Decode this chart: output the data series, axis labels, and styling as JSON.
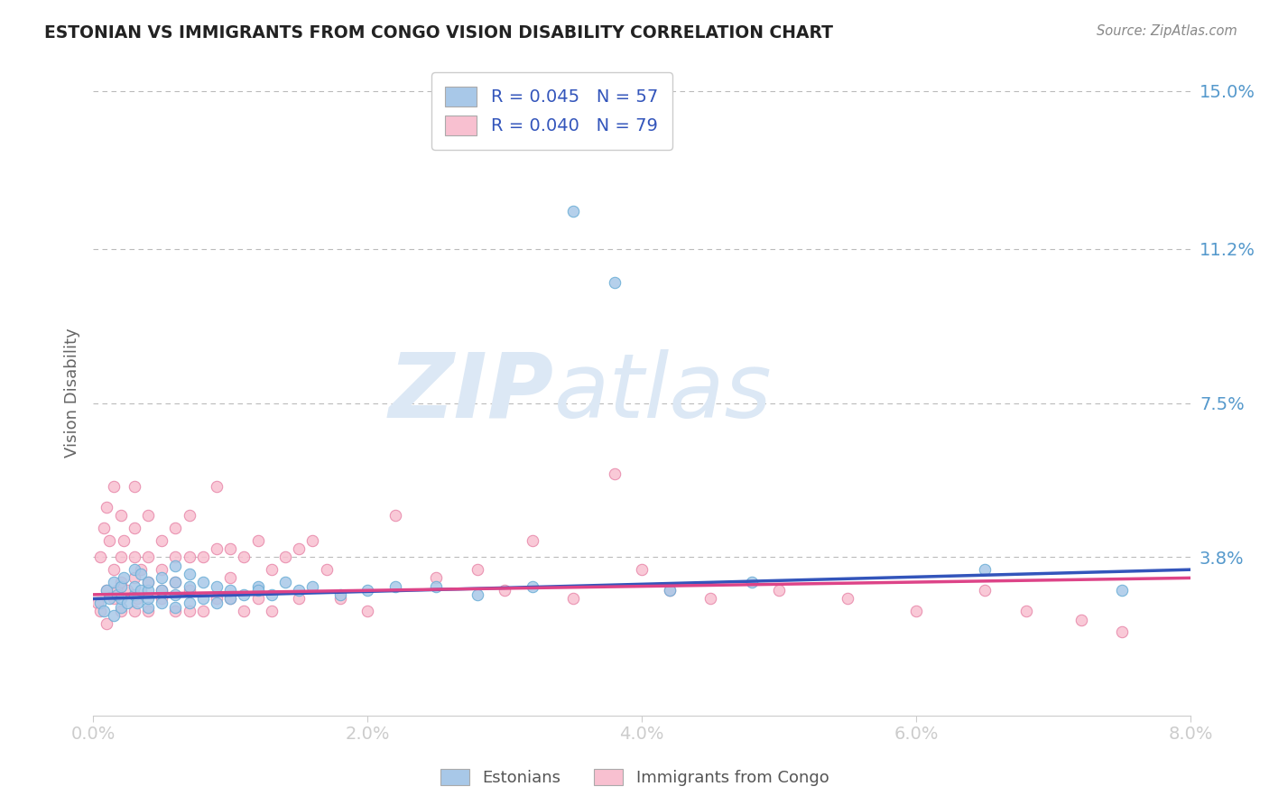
{
  "title": "ESTONIAN VS IMMIGRANTS FROM CONGO VISION DISABILITY CORRELATION CHART",
  "source": "Source: ZipAtlas.com",
  "ylabel": "Vision Disability",
  "xlim": [
    0.0,
    0.08
  ],
  "ylim": [
    0.0,
    0.155
  ],
  "yticks": [
    0.038,
    0.075,
    0.112,
    0.15
  ],
  "ytick_labels": [
    "3.8%",
    "7.5%",
    "11.2%",
    "15.0%"
  ],
  "xticks": [
    0.0,
    0.02,
    0.04,
    0.06,
    0.08
  ],
  "xtick_labels": [
    "0.0%",
    "2.0%",
    "4.0%",
    "6.0%",
    "8.0%"
  ],
  "group1_label": "Estonians",
  "group1_color": "#a8c8e8",
  "group1_edge": "#6aaed6",
  "group1_line": "#3355bb",
  "group1_R": 0.045,
  "group1_N": 57,
  "group2_label": "Immigrants from Congo",
  "group2_color": "#f8c0d0",
  "group2_edge": "#e888aa",
  "group2_line": "#dd4488",
  "group2_R": 0.04,
  "group2_N": 79,
  "watermark_ZIP": "ZIP",
  "watermark_atlas": "atlas",
  "watermark_color": "#dce8f5",
  "background_color": "#ffffff",
  "grid_color": "#bbbbbb",
  "tick_color": "#5599cc",
  "title_color": "#222222",
  "legend_color": "#3355bb",
  "estonians_x": [
    0.0005,
    0.0008,
    0.001,
    0.0012,
    0.0015,
    0.0015,
    0.0018,
    0.002,
    0.002,
    0.002,
    0.0022,
    0.0025,
    0.003,
    0.003,
    0.003,
    0.0032,
    0.0035,
    0.0035,
    0.004,
    0.004,
    0.004,
    0.004,
    0.005,
    0.005,
    0.005,
    0.006,
    0.006,
    0.006,
    0.006,
    0.007,
    0.007,
    0.007,
    0.008,
    0.008,
    0.009,
    0.009,
    0.01,
    0.01,
    0.011,
    0.012,
    0.012,
    0.013,
    0.014,
    0.015,
    0.016,
    0.018,
    0.02,
    0.022,
    0.025,
    0.028,
    0.032,
    0.035,
    0.038,
    0.042,
    0.048,
    0.065,
    0.075
  ],
  "estonians_y": [
    0.027,
    0.025,
    0.03,
    0.028,
    0.032,
    0.024,
    0.029,
    0.026,
    0.031,
    0.028,
    0.033,
    0.027,
    0.029,
    0.035,
    0.031,
    0.027,
    0.03,
    0.034,
    0.026,
    0.03,
    0.028,
    0.032,
    0.027,
    0.03,
    0.033,
    0.026,
    0.029,
    0.032,
    0.036,
    0.027,
    0.031,
    0.034,
    0.028,
    0.032,
    0.027,
    0.031,
    0.028,
    0.03,
    0.029,
    0.031,
    0.03,
    0.029,
    0.032,
    0.03,
    0.031,
    0.029,
    0.03,
    0.031,
    0.031,
    0.029,
    0.031,
    0.121,
    0.104,
    0.03,
    0.032,
    0.035,
    0.03
  ],
  "congo_x": [
    0.0003,
    0.0005,
    0.0005,
    0.0008,
    0.001,
    0.001,
    0.001,
    0.0012,
    0.0015,
    0.0015,
    0.0015,
    0.0018,
    0.002,
    0.002,
    0.002,
    0.002,
    0.0022,
    0.0025,
    0.003,
    0.003,
    0.003,
    0.003,
    0.003,
    0.0032,
    0.0035,
    0.004,
    0.004,
    0.004,
    0.004,
    0.005,
    0.005,
    0.005,
    0.005,
    0.006,
    0.006,
    0.006,
    0.006,
    0.007,
    0.007,
    0.007,
    0.007,
    0.008,
    0.008,
    0.009,
    0.009,
    0.009,
    0.01,
    0.01,
    0.01,
    0.011,
    0.011,
    0.012,
    0.012,
    0.013,
    0.013,
    0.014,
    0.015,
    0.015,
    0.016,
    0.017,
    0.018,
    0.02,
    0.022,
    0.025,
    0.028,
    0.03,
    0.032,
    0.035,
    0.038,
    0.04,
    0.042,
    0.045,
    0.05,
    0.055,
    0.06,
    0.065,
    0.068,
    0.072,
    0.075
  ],
  "congo_y": [
    0.027,
    0.038,
    0.025,
    0.045,
    0.03,
    0.05,
    0.022,
    0.042,
    0.028,
    0.035,
    0.055,
    0.03,
    0.038,
    0.025,
    0.048,
    0.032,
    0.042,
    0.03,
    0.038,
    0.025,
    0.055,
    0.033,
    0.045,
    0.028,
    0.035,
    0.038,
    0.025,
    0.048,
    0.032,
    0.035,
    0.028,
    0.042,
    0.03,
    0.038,
    0.025,
    0.045,
    0.032,
    0.038,
    0.025,
    0.048,
    0.03,
    0.038,
    0.025,
    0.04,
    0.028,
    0.055,
    0.033,
    0.04,
    0.028,
    0.038,
    0.025,
    0.042,
    0.028,
    0.035,
    0.025,
    0.038,
    0.04,
    0.028,
    0.042,
    0.035,
    0.028,
    0.025,
    0.048,
    0.033,
    0.035,
    0.03,
    0.042,
    0.028,
    0.058,
    0.035,
    0.03,
    0.028,
    0.03,
    0.028,
    0.025,
    0.03,
    0.025,
    0.023,
    0.02
  ]
}
